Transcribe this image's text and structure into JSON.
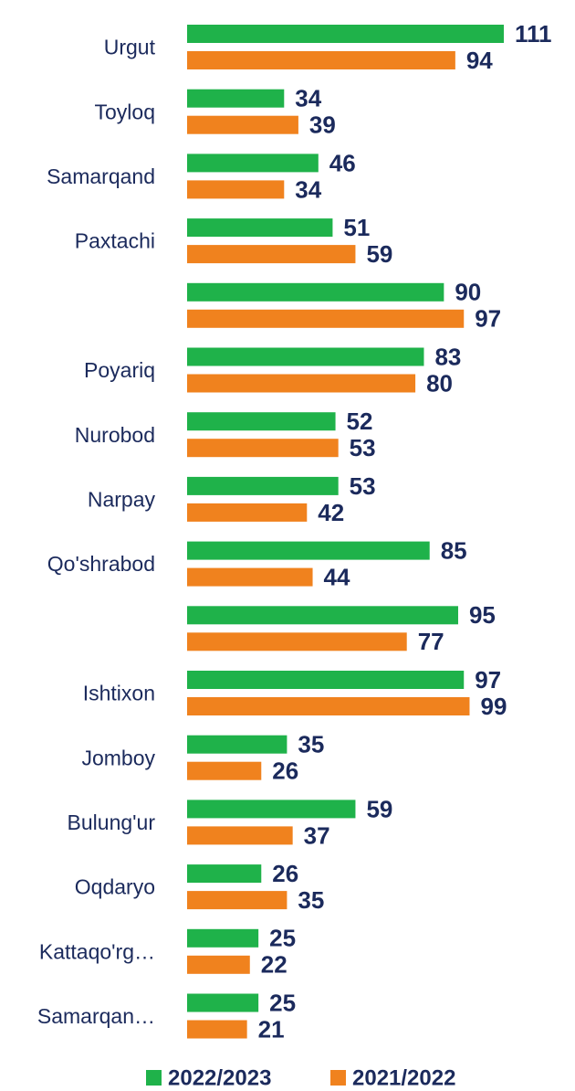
{
  "chart_data": {
    "type": "bar",
    "orientation": "horizontal",
    "categories": [
      "Urgut",
      "Toyloq",
      "Samarqand",
      "Paxtachi",
      null,
      "Poyariq",
      "Nurobod",
      "Narpay",
      "Qo'shrabod",
      null,
      "Ishtixon",
      "Jomboy",
      "Bulung'ur",
      "Oqdaryo",
      "Kattaqo'rg…",
      "Samarqan…"
    ],
    "series": [
      {
        "name": "2022/2023",
        "color": "#1fb24a",
        "values": [
          111,
          34,
          46,
          51,
          90,
          83,
          52,
          53,
          85,
          95,
          97,
          35,
          59,
          26,
          25,
          25
        ]
      },
      {
        "name": "2021/2022",
        "color": "#f0821e",
        "values": [
          94,
          39,
          34,
          59,
          97,
          80,
          53,
          42,
          44,
          77,
          99,
          26,
          37,
          35,
          22,
          21
        ]
      }
    ],
    "legend": "bottom"
  }
}
